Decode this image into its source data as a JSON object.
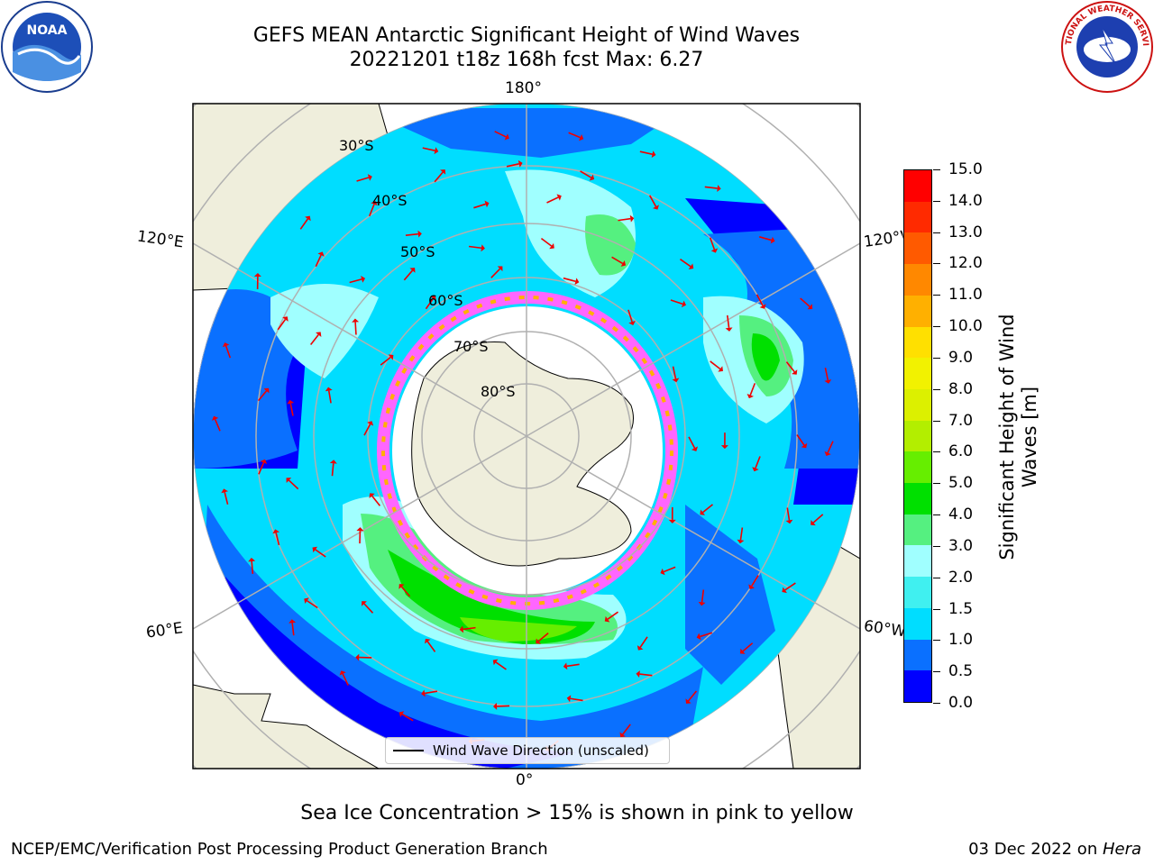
{
  "title_line1": "GEFS MEAN Antarctic Significant Height of Wind Waves",
  "title_line2": "20221201 t18z 168h fcst   Max: 6.27",
  "logos": {
    "left": {
      "icon": "noaa-logo",
      "text": "NOAA"
    },
    "right": {
      "icon": "national-weather-service-logo",
      "text": "NATIONAL WEATHER SERVICE"
    }
  },
  "map": {
    "projection": "south-polar-stereographic",
    "longitude_labels": {
      "top": "180°",
      "bottom": "0°",
      "left_upper": "120°E",
      "left_lower": "60°E",
      "right_upper": "120°W",
      "right_lower": "60°W"
    },
    "latitude_labels": [
      "30°S",
      "40°S",
      "50°S",
      "60°S",
      "70°S",
      "80°S"
    ],
    "colors": {
      "land": "#efeedc",
      "ice_free_white": "#ffffff",
      "arrow": "#ee0000",
      "grid": "#b0b0b0"
    }
  },
  "colorbar": {
    "label": "Significant Height of Wind Waves [m]",
    "ticks": [
      "0.0",
      "0.5",
      "1.0",
      "1.5",
      "2.0",
      "3.0",
      "4.0",
      "5.0",
      "6.0",
      "7.0",
      "8.0",
      "9.0",
      "10.0",
      "11.0",
      "12.0",
      "13.0",
      "14.0",
      "15.0"
    ],
    "colors": [
      "#0000ff",
      "#0a70ff",
      "#00ddff",
      "#40f0f0",
      "#a0ffff",
      "#55f080",
      "#00e000",
      "#66ee00",
      "#b3ee00",
      "#dcf000",
      "#f2f200",
      "#ffe000",
      "#ffb000",
      "#ff8800",
      "#ff5a00",
      "#ff2a00",
      "#ff0000"
    ]
  },
  "legend": {
    "label": "Wind Wave Direction (unscaled)"
  },
  "ice_note": "Sea Ice Concentration > 15% is shown in pink to yellow",
  "footer": {
    "left": "NCEP/EMC/Verification Post Processing Product Generation Branch",
    "date": "03 Dec 2022 on ",
    "machine": "Hera"
  }
}
